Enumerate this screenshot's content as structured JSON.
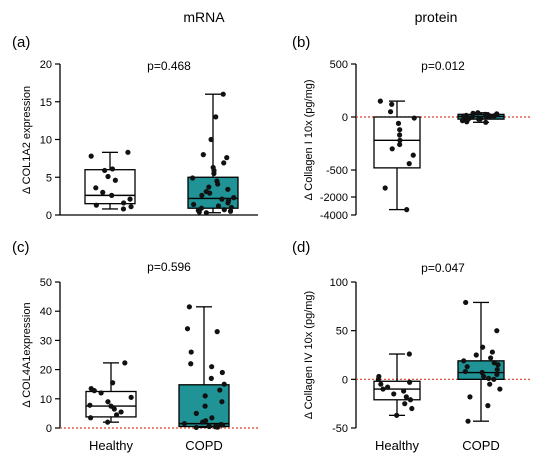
{
  "column_headers": [
    "mRNA",
    "protein"
  ],
  "colors": {
    "healthy_fill": "#ffffff",
    "copd_fill": "#1f9396",
    "ref_line": "#e0402a",
    "axis": "#000000"
  },
  "chart_data": [
    {
      "type": "box",
      "panel_label": "(a)",
      "p_value": "p=0.468",
      "ylabel": "Δ COL1A2 expression",
      "ylim": [
        0,
        20
      ],
      "yticks": [
        "0",
        "5",
        "10",
        "15",
        "20"
      ],
      "categories": [
        "Healthy",
        "COPD"
      ],
      "reference_line": null,
      "boxes": [
        {
          "name": "Healthy",
          "min": 0.8,
          "q1": 1.5,
          "median": 2.6,
          "q3": 6.0,
          "max": 8.3,
          "points": [
            8.3,
            7.8,
            6.1,
            5.9,
            5.1,
            4.6,
            3.6,
            3.0,
            2.6,
            2.1,
            1.6,
            1.3,
            1.1,
            0.8
          ]
        },
        {
          "name": "COPD",
          "min": 0.3,
          "q1": 0.9,
          "median": 2.2,
          "q3": 5.0,
          "max": 16.0,
          "points": [
            16.0,
            13.0,
            10.0,
            8.0,
            7.6,
            6.9,
            6.3,
            5.9,
            5.5,
            4.9,
            4.5,
            4.1,
            3.7,
            3.4,
            3.1,
            2.9,
            2.6,
            2.3,
            2.1,
            1.9,
            1.6,
            1.4,
            1.2,
            1.0,
            0.9,
            0.7,
            0.6,
            0.5,
            0.4,
            0.3
          ]
        }
      ]
    },
    {
      "type": "box",
      "panel_label": "(b)",
      "p_value": "p=0.012",
      "ylabel": "Δ Collagen I 10x (pg/mg)",
      "ylim": [
        -4000,
        500
      ],
      "yticks": [
        "500",
        "0",
        "-500",
        "-2000",
        "-4000"
      ],
      "categories": [
        "Healthy",
        "COPD"
      ],
      "reference_line": 0,
      "boxes": [
        {
          "name": "Healthy",
          "min": -3400,
          "q1": -480,
          "median": -220,
          "q3": 0,
          "max": 150,
          "points": [
            150,
            120,
            50,
            -10,
            -60,
            -120,
            -170,
            -220,
            -260,
            -300,
            -360,
            -440,
            -1500,
            -3400
          ]
        },
        {
          "name": "COPD",
          "min": -50,
          "q1": -20,
          "median": 5,
          "q3": 25,
          "max": 40,
          "points": [
            40,
            35,
            30,
            25,
            22,
            18,
            15,
            12,
            10,
            8,
            5,
            3,
            0,
            -5,
            -10,
            -15,
            -20,
            -25,
            -35,
            -45,
            -50
          ]
        }
      ]
    },
    {
      "type": "box",
      "panel_label": "(c)",
      "p_value": "p=0.596",
      "ylabel": "Δ COL4A1expression",
      "ylim": [
        0,
        50
      ],
      "yticks": [
        "0",
        "10",
        "20",
        "30",
        "40",
        "50"
      ],
      "categories": [
        "Healthy",
        "COPD"
      ],
      "reference_line": 0,
      "boxes": [
        {
          "name": "Healthy",
          "min": 2.0,
          "q1": 3.8,
          "median": 7.5,
          "q3": 12.5,
          "max": 22.3,
          "points": [
            22.3,
            15.5,
            13.5,
            12.8,
            12.0,
            10.5,
            9.0,
            7.8,
            7.5,
            6.5,
            5.5,
            4.5,
            3.5,
            2.0
          ]
        },
        {
          "name": "COPD",
          "min": 0.2,
          "q1": 0.5,
          "median": 1.5,
          "q3": 14.8,
          "max": 41.5,
          "points": [
            41.5,
            34.0,
            33.0,
            26.0,
            22.0,
            21.0,
            19.0,
            17.0,
            15.0,
            13.0,
            11.0,
            9.0,
            7.5,
            5.0,
            3.5,
            2.5,
            2.0,
            1.5,
            1.2,
            1.0,
            0.8,
            0.6,
            0.5,
            0.4,
            0.3,
            0.2
          ]
        }
      ]
    },
    {
      "type": "box",
      "panel_label": "(d)",
      "p_value": "p=0.047",
      "ylabel": "Δ Collagen IV 10x (pg/mg)",
      "ylim": [
        -50,
        100
      ],
      "yticks": [
        "-50",
        "0",
        "50",
        "100"
      ],
      "categories": [
        "Healthy",
        "COPD"
      ],
      "reference_line": 0,
      "boxes": [
        {
          "name": "Healthy",
          "min": -37,
          "q1": -21,
          "median": -10,
          "q3": -2,
          "max": 26,
          "points": [
            26,
            3,
            0,
            -3,
            -5,
            -8,
            -10,
            -12,
            -15,
            -18,
            -21,
            -25,
            -30,
            -37
          ]
        },
        {
          "name": "COPD",
          "min": -43,
          "q1": 0,
          "median": 7,
          "q3": 19,
          "max": 79,
          "points": [
            79,
            50,
            33,
            28,
            25,
            22,
            19,
            17,
            15,
            13,
            10,
            8,
            7,
            5,
            3,
            1,
            0,
            -5,
            -10,
            -18,
            -27,
            -43
          ]
        }
      ]
    }
  ]
}
